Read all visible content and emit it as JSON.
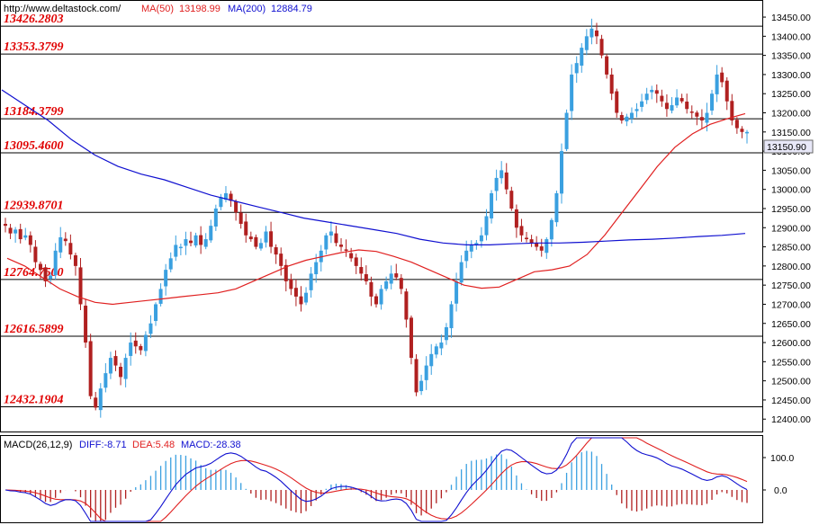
{
  "header": {
    "site": "http://www.deltastock.com/",
    "ma50_label": "MA(50)",
    "ma50_value": "13198.99",
    "ma200_label": "MA(200)",
    "ma200_value": "12884.79"
  },
  "macd_header": {
    "label": "MACD(26,12,9)",
    "diff": "DIFF:-8.71",
    "dea": "DEA:5.48",
    "macd": "MACD:-28.38"
  },
  "current_price": "13150.90",
  "colors": {
    "bull": "#3aa0e0",
    "bear": "#b02020",
    "ma50": "#e02020",
    "ma200": "#1010d0",
    "level_label": "#e00000",
    "hist_pos": "#3aa0e0",
    "hist_neg": "#b02020",
    "price_tag_bg": "#e8e8f8"
  },
  "chart_data": {
    "type": "candlestick",
    "y_ticks": [
      "13450.00",
      "13400.00",
      "13350.00",
      "13300.00",
      "13250.00",
      "13200.00",
      "13150.00",
      "13100.00",
      "13050.00",
      "13000.00",
      "12950.00",
      "12900.00",
      "12850.00",
      "12800.00",
      "12750.00",
      "12700.00",
      "12650.00",
      "12600.00",
      "12550.00",
      "12500.00",
      "12450.00",
      "12400.00"
    ],
    "ylim": [
      12370,
      13490
    ],
    "levels": [
      {
        "label": "13426.2803",
        "value": 13426.2803
      },
      {
        "label": "13353.3799",
        "value": 13353.3799
      },
      {
        "label": "13184.3799",
        "value": 13184.3799
      },
      {
        "label": "13095.4600",
        "value": 13095.46
      },
      {
        "label": "12939.8701",
        "value": 12939.8701
      },
      {
        "label": "12764.7500",
        "value": 12764.75
      },
      {
        "label": "12616.5899",
        "value": 12616.5899
      },
      {
        "label": "12432.1904",
        "value": 12432.1904
      }
    ],
    "close_path": [
      12905,
      12885,
      12895,
      12870,
      12880,
      12855,
      12810,
      12790,
      12760,
      12775,
      12840,
      12875,
      12865,
      12830,
      12800,
      12700,
      12600,
      12460,
      12430,
      12480,
      12520,
      12560,
      12540,
      12510,
      12560,
      12600,
      12590,
      12580,
      12620,
      12650,
      12700,
      12740,
      12790,
      12820,
      12855,
      12850,
      12870,
      12860,
      12880,
      12855,
      12870,
      12905,
      12950,
      12980,
      12990,
      12970,
      12940,
      12910,
      12880,
      12870,
      12850,
      12860,
      12890,
      12850,
      12830,
      12800,
      12760,
      12740,
      12720,
      12700,
      12730,
      12780,
      12810,
      12840,
      12880,
      12890,
      12860,
      12850,
      12840,
      12820,
      12800,
      12780,
      12760,
      12720,
      12700,
      12740,
      12760,
      12780,
      12770,
      12740,
      12660,
      12560,
      12470,
      12500,
      12540,
      12570,
      12590,
      12600,
      12640,
      12700,
      12760,
      12810,
      12840,
      12855,
      12860,
      12880,
      12930,
      12990,
      13030,
      13050,
      13000,
      12950,
      12900,
      12880,
      12870,
      12860,
      12850,
      12840,
      12870,
      12920,
      12990,
      13100,
      13200,
      13300,
      13330,
      13370,
      13400,
      13420,
      13400,
      13350,
      13300,
      13250,
      13200,
      13180,
      13190,
      13200,
      13210,
      13230,
      13250,
      13260,
      13250,
      13230,
      13210,
      13220,
      13240,
      13230,
      13210,
      13200,
      13190,
      13180,
      13200,
      13250,
      13300,
      13280,
      13230,
      13180,
      13160,
      13150,
      13150
    ],
    "ma50": [
      12820,
      12800,
      12770,
      12740,
      12720,
      12705,
      12700,
      12705,
      12710,
      12715,
      12720,
      12725,
      12730,
      12740,
      12760,
      12780,
      12800,
      12815,
      12825,
      12835,
      12842,
      12838,
      12825,
      12810,
      12790,
      12770,
      12750,
      12742,
      12745,
      12765,
      12785,
      12790,
      12800,
      12830,
      12880,
      12940,
      13000,
      13060,
      13110,
      13145,
      13170,
      13185,
      13198
    ],
    "ma200": [
      13260,
      13220,
      13180,
      13130,
      13090,
      13060,
      13040,
      13025,
      13005,
      12985,
      12970,
      12955,
      12940,
      12925,
      12915,
      12905,
      12895,
      12885,
      12870,
      12860,
      12855,
      12855,
      12858,
      12860,
      12860,
      12862,
      12865,
      12868,
      12870,
      12873,
      12877,
      12880,
      12885
    ],
    "macd_ticks": [
      "100.0",
      "0.0"
    ]
  }
}
